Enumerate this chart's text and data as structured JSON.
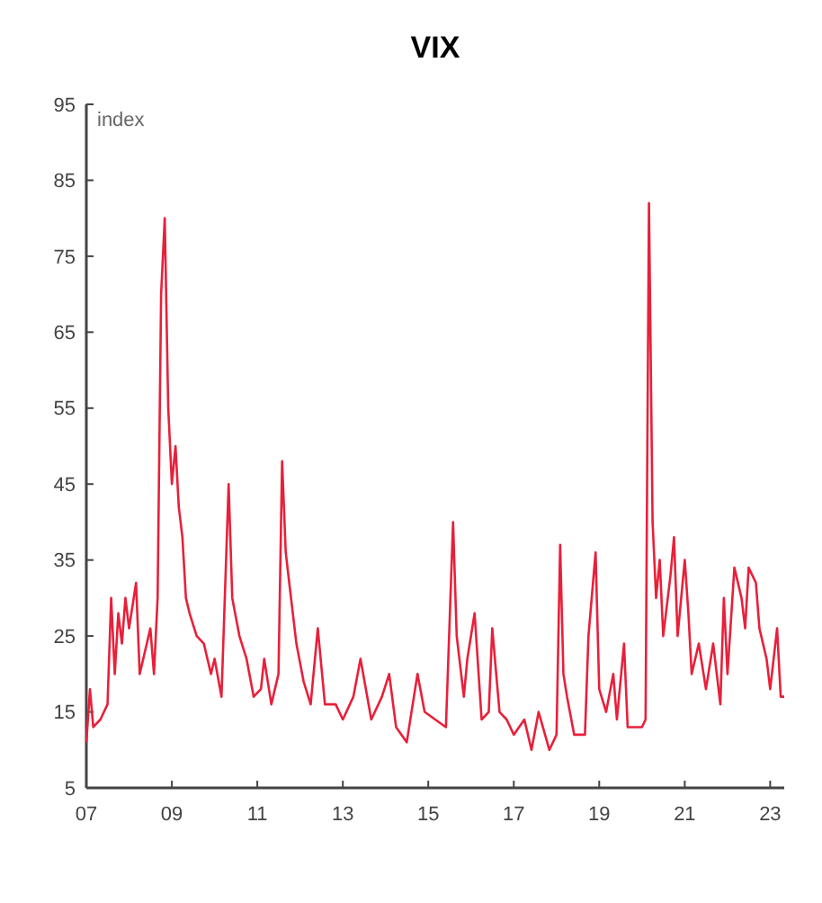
{
  "chart_data": {
    "type": "line",
    "title": "VIX",
    "ylabel": "index",
    "x": [
      "2007-01",
      "2007-02",
      "2007-03",
      "2007-05",
      "2007-07",
      "2007-08",
      "2007-09",
      "2007-10",
      "2007-11",
      "2007-12",
      "2008-01",
      "2008-03",
      "2008-04",
      "2008-06",
      "2008-07",
      "2008-08",
      "2008-09",
      "2008-10",
      "2008-11",
      "2008-12",
      "2009-01",
      "2009-02",
      "2009-03",
      "2009-04",
      "2009-05",
      "2009-06",
      "2009-08",
      "2009-10",
      "2009-12",
      "2010-01",
      "2010-03",
      "2010-05",
      "2010-06",
      "2010-08",
      "2010-10",
      "2010-12",
      "2011-02",
      "2011-03",
      "2011-05",
      "2011-07",
      "2011-08",
      "2011-09",
      "2011-10",
      "2011-12",
      "2012-02",
      "2012-04",
      "2012-06",
      "2012-08",
      "2012-11",
      "2013-01",
      "2013-04",
      "2013-06",
      "2013-09",
      "2013-12",
      "2014-02",
      "2014-04",
      "2014-07",
      "2014-10",
      "2014-12",
      "2015-03",
      "2015-06",
      "2015-08",
      "2015-09",
      "2015-11",
      "2015-12",
      "2016-02",
      "2016-04",
      "2016-06",
      "2016-07",
      "2016-09",
      "2016-11",
      "2017-01",
      "2017-04",
      "2017-06",
      "2017-08",
      "2017-11",
      "2018-01",
      "2018-02",
      "2018-03",
      "2018-04",
      "2018-06",
      "2018-09",
      "2018-10",
      "2018-12",
      "2019-01",
      "2019-03",
      "2019-05",
      "2019-06",
      "2019-08",
      "2019-09",
      "2019-11",
      "2020-01",
      "2020-02",
      "2020-03",
      "2020-04",
      "2020-05",
      "2020-06",
      "2020-07",
      "2020-09",
      "2020-10",
      "2020-11",
      "2021-01",
      "2021-02",
      "2021-03",
      "2021-05",
      "2021-07",
      "2021-09",
      "2021-11",
      "2021-12",
      "2022-01",
      "2022-03",
      "2022-05",
      "2022-06",
      "2022-07",
      "2022-09",
      "2022-10",
      "2022-12",
      "2023-01",
      "2023-03",
      "2023-04",
      "2023-05"
    ],
    "series": [
      {
        "color": "#e8203a",
        "values": [
          11,
          18,
          13,
          14,
          16,
          30,
          20,
          28,
          24,
          30,
          26,
          32,
          20,
          24,
          26,
          20,
          30,
          70,
          80,
          55,
          45,
          50,
          42,
          38,
          30,
          28,
          25,
          24,
          20,
          22,
          17,
          45,
          30,
          25,
          22,
          17,
          18,
          22,
          16,
          20,
          48,
          36,
          32,
          24,
          19,
          16,
          26,
          16,
          16,
          14,
          17,
          22,
          14,
          17,
          20,
          13,
          11,
          20,
          15,
          14,
          13,
          40,
          25,
          17,
          22,
          28,
          14,
          15,
          26,
          15,
          14,
          12,
          14,
          10,
          15,
          10,
          12,
          37,
          20,
          17,
          12,
          12,
          25,
          36,
          18,
          15,
          20,
          14,
          24,
          13,
          13,
          13,
          14,
          82,
          40,
          30,
          35,
          25,
          33,
          38,
          25,
          35,
          28,
          20,
          24,
          18,
          24,
          16,
          30,
          20,
          34,
          30,
          26,
          34,
          32,
          26,
          22,
          18,
          26,
          17,
          17
        ]
      }
    ],
    "xlim": [
      "2007-01",
      "2023-05"
    ],
    "xticks": [
      {
        "value": "2007-01",
        "label": "07"
      },
      {
        "value": "2009-01",
        "label": "09"
      },
      {
        "value": "2011-01",
        "label": "11"
      },
      {
        "value": "2013-01",
        "label": "13"
      },
      {
        "value": "2015-01",
        "label": "15"
      },
      {
        "value": "2017-01",
        "label": "17"
      },
      {
        "value": "2019-01",
        "label": "19"
      },
      {
        "value": "2021-01",
        "label": "21"
      },
      {
        "value": "2023-01",
        "label": "23"
      }
    ],
    "ylim": [
      5,
      95
    ],
    "yticks": [
      5,
      15,
      25,
      35,
      45,
      55,
      65,
      75,
      85,
      95
    ],
    "grid": false
  }
}
